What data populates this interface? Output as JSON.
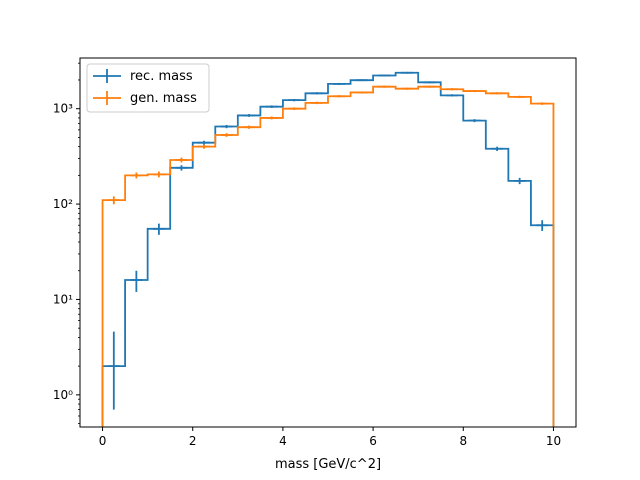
{
  "chart_data": {
    "type": "line",
    "drawstyle": "steps",
    "xlabel": "mass [GeV/c^2]",
    "ylabel": "",
    "title": "",
    "xlim": [
      -0.5,
      10.5
    ],
    "ylim": [
      0.46,
      3400
    ],
    "yscale": "log",
    "grid": false,
    "legend_position": "upper-left",
    "x_ticks": [
      0,
      2,
      4,
      6,
      8,
      10
    ],
    "x_tick_labels": [
      "0",
      "2",
      "4",
      "6",
      "8",
      "10"
    ],
    "y_ticks": [
      1,
      10,
      100,
      1000
    ],
    "y_tick_labels": [
      "10⁰",
      "10¹",
      "10²",
      "10³"
    ],
    "bin_edges": [
      0,
      0.5,
      1,
      1.5,
      2,
      2.5,
      3,
      3.5,
      4,
      4.5,
      5,
      5.5,
      6,
      6.5,
      7,
      7.5,
      8,
      8.5,
      9,
      9.5,
      10
    ],
    "series": [
      {
        "name": "rec. mass",
        "color": "#1f77b4",
        "values": [
          2,
          16,
          55,
          240,
          440,
          650,
          850,
          1050,
          1230,
          1450,
          1820,
          1990,
          2230,
          2380,
          1890,
          1380,
          750,
          380,
          175,
          60
        ],
        "errors_lower": [
          1.3,
          4,
          7.4,
          15.5,
          21,
          25.5,
          29,
          32.4,
          35,
          38,
          42.7,
          44.6,
          47.2,
          48.8,
          43.5,
          37.1,
          27.4,
          19.5,
          13.2,
          7.7
        ],
        "errors_upper": [
          2.6,
          4,
          7.4,
          15.5,
          21,
          25.5,
          29,
          32.4,
          35,
          38,
          42.7,
          44.6,
          47.2,
          48.8,
          43.5,
          37.1,
          27.4,
          19.5,
          13.2,
          7.7
        ]
      },
      {
        "name": "gen. mass",
        "color": "#ff7f0e",
        "values": [
          110,
          200,
          205,
          290,
          400,
          530,
          640,
          800,
          1000,
          1150,
          1350,
          1480,
          1700,
          1620,
          1700,
          1600,
          1530,
          1450,
          1330,
          1130
        ],
        "errors_lower": [
          10.5,
          14.1,
          14.3,
          17,
          20,
          23,
          25.3,
          28.3,
          31.6,
          33.9,
          36.7,
          38.5,
          41.2,
          40.2,
          41.2,
          40,
          39.1,
          38.1,
          36.5,
          33.6
        ],
        "errors_upper": [
          10.5,
          14.1,
          14.3,
          17,
          20,
          23,
          25.3,
          28.3,
          31.6,
          33.9,
          36.7,
          38.5,
          41.2,
          40.2,
          41.2,
          40,
          39.1,
          38.1,
          36.5,
          33.6
        ]
      }
    ]
  }
}
